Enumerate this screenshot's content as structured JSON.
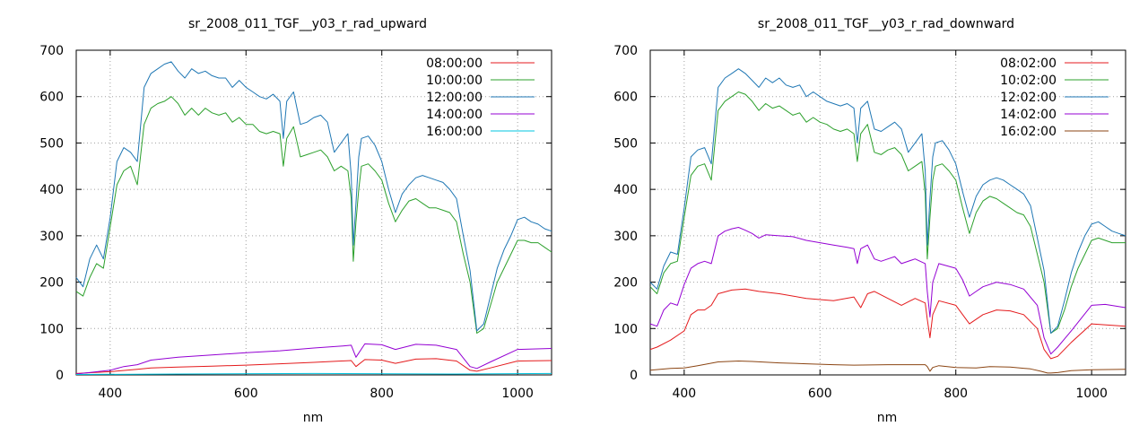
{
  "chart_data": [
    {
      "type": "line",
      "title": "sr_2008_011_TGF__y03_r_rad_upward",
      "xlabel": "nm",
      "ylabel": "",
      "xlim": [
        350,
        1050
      ],
      "ylim": [
        0,
        700
      ],
      "xticks": [
        400,
        600,
        800,
        1000
      ],
      "yticks": [
        0,
        100,
        200,
        300,
        400,
        500,
        600,
        700
      ],
      "grid": true,
      "legend_position": "top-right",
      "series": [
        {
          "name": "08:00:00",
          "color": "#e41a1c",
          "x": [
            350,
            400,
            440,
            460,
            500,
            550,
            600,
            650,
            700,
            740,
            755,
            762,
            775,
            800,
            820,
            850,
            880,
            910,
            930,
            940,
            960,
            1000,
            1050
          ],
          "y": [
            3,
            7,
            12,
            15,
            17,
            19,
            21,
            24,
            27,
            30,
            31,
            18,
            33,
            32,
            25,
            34,
            35,
            30,
            10,
            8,
            15,
            30,
            31
          ]
        },
        {
          "name": "10:00:00",
          "color": "#2ca02c",
          "x": [
            350,
            360,
            370,
            380,
            390,
            400,
            410,
            420,
            430,
            440,
            450,
            460,
            470,
            480,
            490,
            500,
            510,
            520,
            530,
            540,
            550,
            560,
            570,
            580,
            590,
            600,
            610,
            620,
            630,
            640,
            650,
            655,
            660,
            670,
            680,
            690,
            700,
            710,
            720,
            730,
            740,
            750,
            755,
            758,
            762,
            766,
            770,
            780,
            790,
            800,
            810,
            820,
            830,
            840,
            850,
            860,
            870,
            880,
            890,
            900,
            910,
            920,
            930,
            940,
            950,
            960,
            970,
            980,
            990,
            1000,
            1010,
            1020,
            1030,
            1040,
            1050
          ],
          "y": [
            180,
            170,
            210,
            240,
            230,
            320,
            410,
            440,
            450,
            410,
            540,
            575,
            585,
            590,
            600,
            585,
            560,
            575,
            560,
            575,
            565,
            560,
            565,
            545,
            555,
            540,
            540,
            525,
            520,
            525,
            520,
            450,
            510,
            535,
            470,
            475,
            480,
            485,
            470,
            440,
            450,
            440,
            380,
            245,
            330,
            400,
            450,
            455,
            440,
            420,
            370,
            330,
            355,
            375,
            380,
            370,
            360,
            360,
            355,
            350,
            330,
            260,
            200,
            90,
            100,
            150,
            200,
            230,
            260,
            290,
            290,
            285,
            285,
            275,
            265
          ]
        },
        {
          "name": "12:00:00",
          "color": "#1f77b4",
          "x": [
            350,
            360,
            370,
            380,
            390,
            400,
            410,
            420,
            430,
            440,
            450,
            460,
            470,
            480,
            490,
            500,
            510,
            520,
            530,
            540,
            550,
            560,
            570,
            580,
            590,
            600,
            610,
            620,
            630,
            640,
            650,
            655,
            660,
            670,
            680,
            690,
            700,
            710,
            720,
            730,
            740,
            750,
            755,
            758,
            762,
            766,
            770,
            780,
            790,
            800,
            810,
            820,
            830,
            840,
            850,
            860,
            870,
            880,
            890,
            900,
            910,
            920,
            930,
            940,
            950,
            960,
            970,
            980,
            990,
            1000,
            1010,
            1020,
            1030,
            1040,
            1050
          ],
          "y": [
            210,
            190,
            250,
            280,
            250,
            340,
            460,
            490,
            480,
            460,
            620,
            650,
            660,
            670,
            675,
            655,
            640,
            660,
            650,
            655,
            645,
            640,
            640,
            620,
            635,
            620,
            610,
            600,
            595,
            605,
            590,
            510,
            590,
            610,
            540,
            545,
            555,
            560,
            545,
            480,
            500,
            520,
            430,
            280,
            370,
            470,
            510,
            515,
            495,
            460,
            400,
            350,
            390,
            410,
            425,
            430,
            425,
            420,
            415,
            400,
            380,
            300,
            225,
            95,
            110,
            170,
            230,
            270,
            300,
            335,
            340,
            330,
            325,
            315,
            310
          ]
        },
        {
          "name": "14:00:00",
          "color": "#9400d3",
          "x": [
            350,
            400,
            420,
            440,
            460,
            500,
            550,
            600,
            650,
            700,
            740,
            755,
            762,
            775,
            800,
            820,
            850,
            880,
            910,
            930,
            940,
            960,
            1000,
            1050
          ],
          "y": [
            2,
            10,
            18,
            22,
            32,
            38,
            43,
            48,
            52,
            58,
            62,
            64,
            38,
            67,
            65,
            55,
            66,
            64,
            55,
            18,
            14,
            28,
            55,
            57
          ]
        },
        {
          "name": "16:00:00",
          "color": "#00c5e0",
          "x": [
            350,
            500,
            700,
            900,
            1050
          ],
          "y": [
            1,
            2,
            3,
            2,
            3
          ]
        }
      ]
    },
    {
      "type": "line",
      "title": "sr_2008_011_TGF__y03_r_rad_downward",
      "xlabel": "nm",
      "ylabel": "",
      "xlim": [
        350,
        1050
      ],
      "ylim": [
        0,
        700
      ],
      "xticks": [
        400,
        600,
        800,
        1000
      ],
      "yticks": [
        0,
        100,
        200,
        300,
        400,
        500,
        600,
        700
      ],
      "grid": true,
      "legend_position": "top-right",
      "series": [
        {
          "name": "08:02:00",
          "color": "#e41a1c",
          "x": [
            350,
            360,
            380,
            400,
            410,
            420,
            430,
            440,
            450,
            470,
            490,
            510,
            540,
            580,
            620,
            650,
            660,
            670,
            680,
            700,
            720,
            740,
            755,
            758,
            762,
            766,
            775,
            800,
            820,
            840,
            860,
            880,
            900,
            920,
            930,
            940,
            950,
            970,
            1000,
            1050
          ],
          "y": [
            55,
            60,
            75,
            95,
            130,
            140,
            140,
            150,
            175,
            183,
            185,
            180,
            175,
            165,
            160,
            168,
            145,
            175,
            180,
            165,
            150,
            165,
            155,
            120,
            80,
            130,
            160,
            150,
            110,
            130,
            140,
            138,
            130,
            100,
            55,
            35,
            40,
            70,
            110,
            105
          ]
        },
        {
          "name": "10:02:00",
          "color": "#2ca02c",
          "x": [
            350,
            360,
            370,
            380,
            390,
            400,
            410,
            420,
            430,
            440,
            450,
            460,
            470,
            480,
            490,
            500,
            510,
            520,
            530,
            540,
            550,
            560,
            570,
            580,
            590,
            600,
            610,
            620,
            630,
            640,
            650,
            655,
            660,
            670,
            680,
            690,
            700,
            710,
            720,
            730,
            740,
            750,
            755,
            758,
            762,
            766,
            770,
            780,
            790,
            800,
            810,
            820,
            830,
            840,
            850,
            860,
            870,
            880,
            890,
            900,
            910,
            920,
            930,
            940,
            950,
            960,
            970,
            980,
            990,
            1000,
            1010,
            1020,
            1030,
            1040,
            1050
          ],
          "y": [
            190,
            175,
            220,
            240,
            245,
            340,
            430,
            450,
            455,
            420,
            570,
            590,
            600,
            610,
            605,
            590,
            570,
            585,
            575,
            580,
            570,
            560,
            565,
            545,
            555,
            545,
            540,
            530,
            525,
            530,
            520,
            460,
            520,
            540,
            480,
            475,
            485,
            490,
            475,
            440,
            450,
            460,
            390,
            250,
            340,
            420,
            450,
            455,
            440,
            420,
            360,
            305,
            350,
            375,
            385,
            380,
            370,
            360,
            350,
            345,
            320,
            260,
            200,
            90,
            100,
            140,
            190,
            230,
            260,
            290,
            295,
            290,
            285,
            285,
            285
          ]
        },
        {
          "name": "12:02:00",
          "color": "#1f77b4",
          "x": [
            350,
            360,
            370,
            380,
            390,
            400,
            410,
            420,
            430,
            440,
            450,
            460,
            470,
            480,
            490,
            500,
            510,
            520,
            530,
            540,
            550,
            560,
            570,
            580,
            590,
            600,
            610,
            620,
            630,
            640,
            650,
            655,
            660,
            670,
            680,
            690,
            700,
            710,
            720,
            730,
            740,
            750,
            755,
            758,
            762,
            766,
            770,
            780,
            790,
            800,
            810,
            820,
            830,
            840,
            850,
            860,
            870,
            880,
            890,
            900,
            910,
            920,
            930,
            940,
            950,
            960,
            970,
            980,
            990,
            1000,
            1010,
            1020,
            1030,
            1040,
            1050
          ],
          "y": [
            200,
            185,
            235,
            265,
            260,
            360,
            470,
            485,
            490,
            455,
            620,
            640,
            650,
            660,
            650,
            635,
            620,
            640,
            630,
            640,
            625,
            620,
            625,
            600,
            610,
            600,
            590,
            585,
            580,
            585,
            575,
            500,
            575,
            590,
            530,
            525,
            535,
            545,
            530,
            480,
            500,
            520,
            440,
            280,
            380,
            470,
            500,
            505,
            485,
            455,
            395,
            340,
            385,
            410,
            420,
            425,
            420,
            410,
            400,
            390,
            365,
            295,
            225,
            90,
            105,
            160,
            220,
            265,
            300,
            325,
            330,
            320,
            310,
            305,
            300
          ]
        },
        {
          "name": "14:02:00",
          "color": "#9400d3",
          "x": [
            350,
            360,
            370,
            380,
            390,
            400,
            410,
            420,
            430,
            440,
            450,
            460,
            470,
            480,
            490,
            500,
            510,
            520,
            540,
            560,
            580,
            600,
            620,
            640,
            650,
            655,
            660,
            670,
            680,
            690,
            700,
            710,
            720,
            740,
            755,
            758,
            762,
            766,
            775,
            800,
            810,
            820,
            830,
            840,
            860,
            880,
            900,
            920,
            930,
            940,
            950,
            970,
            1000,
            1020,
            1050
          ],
          "y": [
            110,
            105,
            140,
            155,
            150,
            195,
            230,
            240,
            245,
            240,
            300,
            310,
            315,
            318,
            312,
            305,
            295,
            302,
            300,
            298,
            290,
            285,
            280,
            275,
            272,
            240,
            272,
            280,
            250,
            245,
            250,
            255,
            240,
            250,
            240,
            180,
            125,
            200,
            240,
            230,
            205,
            170,
            180,
            190,
            200,
            195,
            185,
            150,
            80,
            45,
            60,
            95,
            150,
            152,
            145
          ]
        },
        {
          "name": "16:02:00",
          "color": "#8b4513",
          "x": [
            350,
            380,
            400,
            420,
            450,
            480,
            500,
            540,
            580,
            620,
            650,
            700,
            740,
            755,
            758,
            762,
            766,
            775,
            800,
            830,
            850,
            880,
            910,
            925,
            935,
            940,
            950,
            970,
            1000,
            1050
          ],
          "y": [
            10,
            14,
            15,
            20,
            28,
            30,
            29,
            26,
            24,
            22,
            21,
            22,
            22,
            22,
            18,
            8,
            16,
            20,
            16,
            15,
            18,
            17,
            13,
            8,
            4,
            4,
            5,
            9,
            11,
            12
          ]
        }
      ]
    }
  ]
}
